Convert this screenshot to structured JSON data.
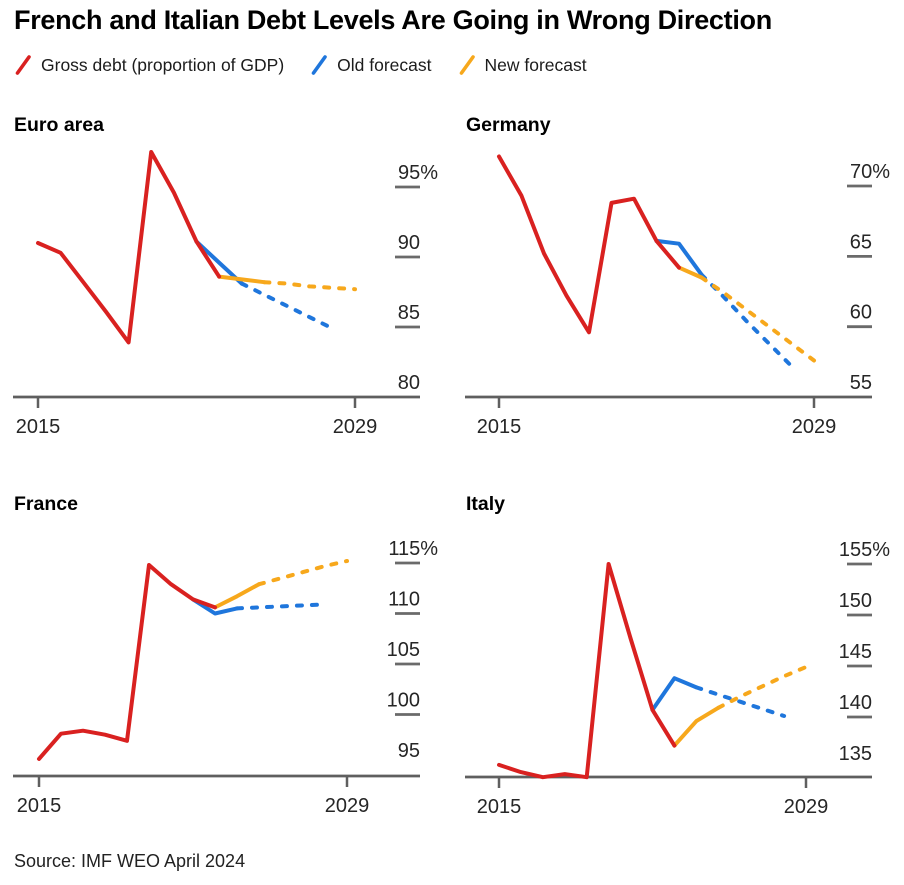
{
  "title": "French and Italian Debt Levels Are Going in Wrong Direction",
  "source": "Source: IMF WEO April 2024",
  "colors": {
    "red": "#d92120",
    "blue": "#1f76dc",
    "orange": "#f7a81c",
    "axis": "#5f5f5f",
    "tick": "#6a6a6a",
    "label": "#262626"
  },
  "legend": [
    {
      "label": "Gross debt (proportion of GDP)",
      "color": "#d92120"
    },
    {
      "label": "Old forecast",
      "color": "#1f76dc"
    },
    {
      "label": "New forecast",
      "color": "#f7a81c"
    }
  ],
  "chart_data": [
    {
      "type": "line",
      "title": "Euro area",
      "x_range": [
        2015,
        2029
      ],
      "x_ticks": [
        2015,
        2029
      ],
      "y_ticks": [
        {
          "label": "95%",
          "value": 95
        },
        {
          "label": "90",
          "value": 90
        },
        {
          "label": "85",
          "value": 85
        },
        {
          "label": "80",
          "value": 80
        }
      ],
      "series": [
        {
          "id": "old-forecast-solid",
          "legend": "Old forecast",
          "dashed": false,
          "points": [
            [
              2022,
              91.1
            ],
            [
              2023,
              89.6
            ],
            [
              2024,
              88.1
            ]
          ]
        },
        {
          "id": "old-forecast-projection",
          "legend": "Old forecast",
          "dashed": true,
          "points": [
            [
              2024,
              88.1
            ],
            [
              2025,
              87.3
            ],
            [
              2026,
              86.5
            ],
            [
              2027,
              85.7
            ],
            [
              2028,
              84.9
            ]
          ]
        },
        {
          "id": "new-forecast-solid",
          "legend": "New forecast",
          "dashed": false,
          "points": [
            [
              2023,
              88.6
            ],
            [
              2024,
              88.4
            ],
            [
              2025,
              88.2
            ]
          ]
        },
        {
          "id": "new-forecast-projection",
          "legend": "New forecast",
          "dashed": true,
          "points": [
            [
              2025,
              88.2
            ],
            [
              2026,
              88.1
            ],
            [
              2027,
              87.9
            ],
            [
              2028,
              87.8
            ],
            [
              2029,
              87.7
            ]
          ]
        },
        {
          "id": "gross-debt",
          "legend": "Gross debt (proportion of GDP)",
          "dashed": false,
          "points": [
            [
              2015,
              91.0
            ],
            [
              2016,
              90.3
            ],
            [
              2017,
              88.2
            ],
            [
              2018,
              86.1
            ],
            [
              2019,
              83.9
            ],
            [
              2020,
              97.5
            ],
            [
              2021,
              94.6
            ],
            [
              2022,
              91.1
            ],
            [
              2023,
              88.6
            ]
          ]
        }
      ]
    },
    {
      "type": "line",
      "title": "Germany",
      "x_range": [
        2015,
        2029
      ],
      "x_ticks": [
        2015,
        2029
      ],
      "y_ticks": [
        {
          "label": "70%",
          "value": 70
        },
        {
          "label": "65",
          "value": 65
        },
        {
          "label": "60",
          "value": 60
        },
        {
          "label": "55",
          "value": 55
        }
      ],
      "series": [
        {
          "id": "old-forecast-solid",
          "legend": "Old forecast",
          "dashed": false,
          "points": [
            [
              2022,
              66.1
            ],
            [
              2023,
              65.9
            ],
            [
              2024,
              63.7
            ]
          ]
        },
        {
          "id": "old-forecast-projection",
          "legend": "Old forecast",
          "dashed": true,
          "points": [
            [
              2024,
              63.7
            ],
            [
              2025,
              62.1
            ],
            [
              2026,
              60.4
            ],
            [
              2027,
              58.8
            ],
            [
              2028,
              57.2
            ]
          ]
        },
        {
          "id": "new-forecast-solid",
          "legend": "New forecast",
          "dashed": false,
          "points": [
            [
              2023,
              64.2
            ],
            [
              2024,
              63.5
            ]
          ]
        },
        {
          "id": "new-forecast-projection",
          "legend": "New forecast",
          "dashed": true,
          "points": [
            [
              2024,
              63.5
            ],
            [
              2025,
              62.4
            ],
            [
              2026,
              61.2
            ],
            [
              2027,
              60.0
            ],
            [
              2028,
              58.8
            ],
            [
              2029,
              57.6
            ]
          ]
        },
        {
          "id": "gross-debt",
          "legend": "Gross debt (proportion of GDP)",
          "dashed": false,
          "points": [
            [
              2015,
              72.1
            ],
            [
              2016,
              69.3
            ],
            [
              2017,
              65.2
            ],
            [
              2018,
              62.2
            ],
            [
              2019,
              59.6
            ],
            [
              2020,
              68.8
            ],
            [
              2021,
              69.1
            ],
            [
              2022,
              66.1
            ],
            [
              2023,
              64.2
            ]
          ]
        }
      ]
    },
    {
      "type": "line",
      "title": "France",
      "x_range": [
        2015,
        2029
      ],
      "x_ticks": [
        2015,
        2029
      ],
      "y_ticks": [
        {
          "label": "115%",
          "value": 115
        },
        {
          "label": "110",
          "value": 110
        },
        {
          "label": "105",
          "value": 105
        },
        {
          "label": "100",
          "value": 100
        },
        {
          "label": "95",
          "value": 95
        }
      ],
      "series": [
        {
          "id": "old-forecast-solid",
          "legend": "Old forecast",
          "dashed": false,
          "points": [
            [
              2022,
              111.4
            ],
            [
              2023,
              110.0
            ],
            [
              2024,
              110.5
            ]
          ]
        },
        {
          "id": "old-forecast-projection",
          "legend": "Old forecast",
          "dashed": true,
          "points": [
            [
              2024,
              110.5
            ],
            [
              2025,
              110.6
            ],
            [
              2026,
              110.7
            ],
            [
              2027,
              110.8
            ],
            [
              2028,
              110.9
            ]
          ]
        },
        {
          "id": "new-forecast-solid",
          "legend": "New forecast",
          "dashed": false,
          "points": [
            [
              2023,
              110.6
            ],
            [
              2024,
              111.7
            ],
            [
              2025,
              112.9
            ]
          ]
        },
        {
          "id": "new-forecast-projection",
          "legend": "New forecast",
          "dashed": true,
          "points": [
            [
              2025,
              112.9
            ],
            [
              2026,
              113.5
            ],
            [
              2027,
              114.1
            ],
            [
              2028,
              114.7
            ],
            [
              2029,
              115.2
            ]
          ]
        },
        {
          "id": "gross-debt",
          "legend": "Gross debt (proportion of GDP)",
          "dashed": false,
          "points": [
            [
              2015,
              95.6
            ],
            [
              2016,
              98.1
            ],
            [
              2017,
              98.4
            ],
            [
              2018,
              98.0
            ],
            [
              2019,
              97.4
            ],
            [
              2020,
              114.8
            ],
            [
              2021,
              112.9
            ],
            [
              2022,
              111.4
            ],
            [
              2023,
              110.6
            ]
          ]
        }
      ]
    },
    {
      "type": "line",
      "title": "Italy",
      "x_range": [
        2015,
        2029
      ],
      "x_ticks": [
        2015,
        2029
      ],
      "y_ticks": [
        {
          "label": "155%",
          "value": 155
        },
        {
          "label": "150",
          "value": 150
        },
        {
          "label": "145",
          "value": 145
        },
        {
          "label": "140",
          "value": 140
        },
        {
          "label": "135",
          "value": 135
        }
      ],
      "series": [
        {
          "id": "old-forecast-solid",
          "legend": "Old forecast",
          "dashed": false,
          "points": [
            [
              2022,
              140.7
            ],
            [
              2023,
              143.8
            ],
            [
              2024,
              142.9
            ]
          ]
        },
        {
          "id": "old-forecast-projection",
          "legend": "Old forecast",
          "dashed": true,
          "points": [
            [
              2024,
              142.9
            ],
            [
              2025,
              142.2
            ],
            [
              2026,
              141.5
            ],
            [
              2027,
              140.8
            ],
            [
              2028,
              140.1
            ]
          ]
        },
        {
          "id": "new-forecast-solid",
          "legend": "New forecast",
          "dashed": false,
          "points": [
            [
              2023,
              137.2
            ],
            [
              2024,
              139.6
            ],
            [
              2025,
              140.9
            ]
          ]
        },
        {
          "id": "new-forecast-projection",
          "legend": "New forecast",
          "dashed": true,
          "points": [
            [
              2025,
              140.9
            ],
            [
              2026,
              142.0
            ],
            [
              2027,
              143.0
            ],
            [
              2028,
              144.0
            ],
            [
              2029,
              144.9
            ]
          ]
        },
        {
          "id": "gross-debt",
          "legend": "Gross debt (proportion of GDP)",
          "dashed": false,
          "points": [
            [
              2015,
              135.3
            ],
            [
              2016,
              134.6
            ],
            [
              2017,
              134.1
            ],
            [
              2018,
              134.4
            ],
            [
              2019,
              134.1
            ],
            [
              2020,
              155.0
            ],
            [
              2021,
              147.7
            ],
            [
              2022,
              140.7
            ],
            [
              2023,
              137.2
            ]
          ]
        }
      ]
    }
  ]
}
